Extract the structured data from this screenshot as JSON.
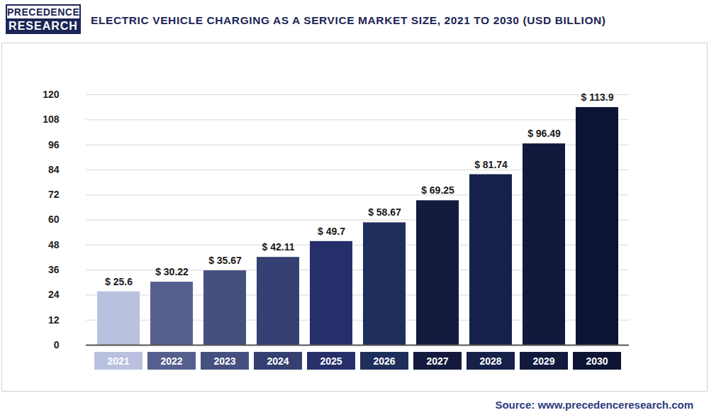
{
  "chart_data": {
    "type": "bar",
    "title": "ELECTRIC VEHICLE CHARGING AS A SERVICE MARKET SIZE, 2021 TO 2030 (USD BILLION)",
    "logo": [
      "PRECEDENCE",
      "RESEARCH"
    ],
    "source": "Source: www.precedenceresearch.com",
    "categories": [
      "2021",
      "2022",
      "2023",
      "2024",
      "2025",
      "2026",
      "2027",
      "2028",
      "2029",
      "2030"
    ],
    "values": [
      25.6,
      30.22,
      35.67,
      42.11,
      49.7,
      58.67,
      69.25,
      81.74,
      96.49,
      113.9
    ],
    "value_labels": [
      "$ 25.6",
      "$ 30.22",
      "$ 35.67",
      "$ 42.11",
      "$ 49.7",
      "$ 58.67",
      "$ 69.25",
      "$ 81.74",
      "$ 96.49",
      "$ 113.9"
    ],
    "colors": [
      "#b9c1df",
      "#56608f",
      "#46507e",
      "#353f71",
      "#262f69",
      "#1f2f5c",
      "#141a3e",
      "#16214a",
      "#111a3d",
      "#0d1333"
    ],
    "ylim": [
      0,
      120
    ],
    "yticks": [
      0,
      12,
      24,
      36,
      48,
      60,
      72,
      84,
      96,
      108,
      120
    ],
    "grid": true,
    "data_labels": true
  }
}
